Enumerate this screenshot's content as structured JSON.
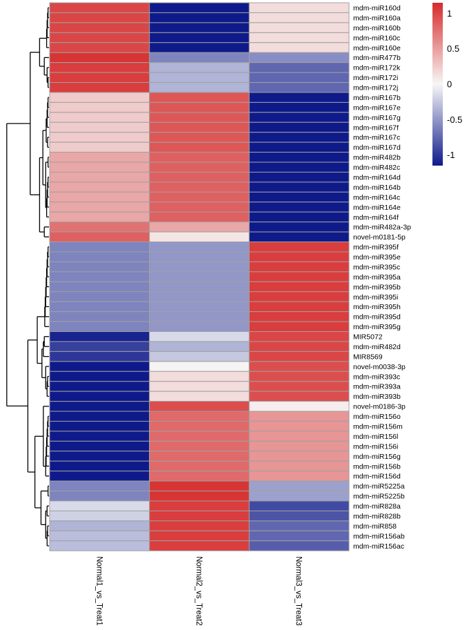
{
  "chart_data": {
    "type": "heatmap",
    "title": "",
    "columns": [
      "Normal1_vs_Treat1",
      "Normal2_vs_Treat2",
      "Normal3_vs_Treat3"
    ],
    "rows": [
      "mdm-miR160d",
      "mdm-miR160a",
      "mdm-miR160b",
      "mdm-miR160c",
      "mdm-miR160e",
      "mdm-miR477b",
      "mdm-miR172k",
      "mdm-miR172i",
      "mdm-miR172j",
      "mdm-miR167b",
      "mdm-miR167e",
      "mdm-miR167g",
      "mdm-miR167f",
      "mdm-miR167c",
      "mdm-miR167d",
      "mdm-miR482b",
      "mdm-miR482c",
      "mdm-miR164d",
      "mdm-miR164b",
      "mdm-miR164c",
      "mdm-miR164e",
      "mdm-miR164f",
      "mdm-miR482a-3p",
      "novel-m0181-5p",
      "mdm-miR395f",
      "mdm-miR395e",
      "mdm-miR395c",
      "mdm-miR395a",
      "mdm-miR395b",
      "mdm-miR395i",
      "mdm-miR395h",
      "mdm-miR395d",
      "mdm-miR395g",
      "MIR5072",
      "mdm-miR482d",
      "MIR8569",
      "novel-m0038-3p",
      "mdm-miR393c",
      "mdm-miR393a",
      "mdm-miR393b",
      "novel-m0186-3p",
      "mdm-miR156o",
      "mdm-miR156m",
      "mdm-miR156l",
      "mdm-miR156i",
      "mdm-miR156g",
      "mdm-miR156b",
      "mdm-miR156d",
      "mdm-miR5225a",
      "mdm-miR5225b",
      "mdm-miR828a",
      "mdm-miR828b",
      "mdm-miR858",
      "mdm-miR156ab",
      "mdm-miR156ac"
    ],
    "values": [
      [
        1.0,
        -1.15,
        0.15
      ],
      [
        1.0,
        -1.15,
        0.15
      ],
      [
        1.0,
        -1.15,
        0.15
      ],
      [
        1.0,
        -1.15,
        0.15
      ],
      [
        1.0,
        -1.15,
        0.15
      ],
      [
        1.1,
        -0.6,
        -0.55
      ],
      [
        1.05,
        -0.35,
        -0.75
      ],
      [
        1.05,
        -0.35,
        -0.75
      ],
      [
        1.05,
        -0.35,
        -0.75
      ],
      [
        0.25,
        0.9,
        -1.15
      ],
      [
        0.25,
        0.9,
        -1.15
      ],
      [
        0.25,
        0.9,
        -1.15
      ],
      [
        0.25,
        0.9,
        -1.15
      ],
      [
        0.25,
        0.9,
        -1.15
      ],
      [
        0.25,
        0.9,
        -1.15
      ],
      [
        0.45,
        0.85,
        -1.15
      ],
      [
        0.45,
        0.85,
        -1.15
      ],
      [
        0.45,
        0.85,
        -1.15
      ],
      [
        0.45,
        0.85,
        -1.15
      ],
      [
        0.45,
        0.85,
        -1.15
      ],
      [
        0.45,
        0.85,
        -1.15
      ],
      [
        0.45,
        0.85,
        -1.15
      ],
      [
        0.75,
        0.45,
        -1.15
      ],
      [
        0.85,
        0.1,
        -1.15
      ],
      [
        -0.6,
        -0.5,
        1.05
      ],
      [
        -0.6,
        -0.5,
        1.05
      ],
      [
        -0.6,
        -0.5,
        1.05
      ],
      [
        -0.6,
        -0.5,
        1.05
      ],
      [
        -0.6,
        -0.5,
        1.05
      ],
      [
        -0.6,
        -0.5,
        1.05
      ],
      [
        -0.6,
        -0.5,
        1.05
      ],
      [
        -0.6,
        -0.5,
        1.05
      ],
      [
        -0.6,
        -0.5,
        1.05
      ],
      [
        -1.1,
        -0.15,
        1.0
      ],
      [
        -0.95,
        -0.35,
        1.0
      ],
      [
        -1.0,
        -0.25,
        1.0
      ],
      [
        -1.15,
        0.02,
        0.95
      ],
      [
        -1.15,
        0.15,
        0.95
      ],
      [
        -1.15,
        0.15,
        0.95
      ],
      [
        -1.15,
        0.15,
        0.95
      ],
      [
        -1.15,
        0.95,
        0.05
      ],
      [
        -1.15,
        0.8,
        0.55
      ],
      [
        -1.15,
        0.8,
        0.55
      ],
      [
        -1.15,
        0.8,
        0.55
      ],
      [
        -1.15,
        0.8,
        0.55
      ],
      [
        -1.15,
        0.8,
        0.55
      ],
      [
        -1.15,
        0.8,
        0.55
      ],
      [
        -1.15,
        0.8,
        0.55
      ],
      [
        -0.6,
        1.1,
        -0.45
      ],
      [
        -0.6,
        1.1,
        -0.45
      ],
      [
        -0.15,
        1.05,
        -0.9
      ],
      [
        -0.2,
        1.05,
        -0.85
      ],
      [
        -0.35,
        1.05,
        -0.75
      ],
      [
        -0.3,
        1.05,
        -0.75
      ],
      [
        -0.3,
        1.05,
        -0.8
      ]
    ],
    "color_scale": {
      "min_value": -1.15,
      "mid_value": 0,
      "max_value": 1.15,
      "low_color": "#0f1a8a",
      "mid_color": "#f7f7f7",
      "high_color": "#d62b2b"
    },
    "legend_ticks": [
      1,
      0.5,
      0,
      -0.5,
      -1
    ],
    "legend_tick_labels": [
      "1",
      "0.5",
      "0",
      "-0.5",
      "-1"
    ],
    "cell_border_color": "#a0a0a0",
    "dendrogram_color": "#000000",
    "legend_position": "top-right"
  }
}
